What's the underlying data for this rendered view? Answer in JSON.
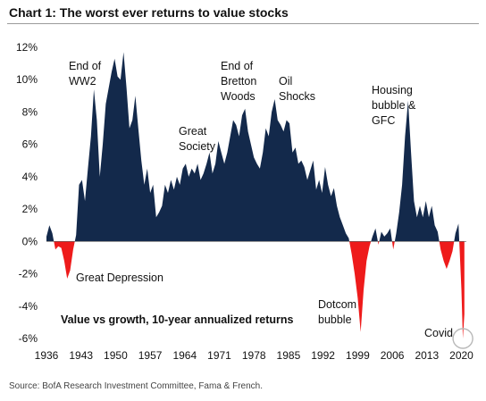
{
  "title": "Chart 1: The worst ever returns to value stocks",
  "source": "Source: BofA Research Investment Committee, Fama & French.",
  "colors": {
    "positive": "#13294b",
    "negative": "#ee1b1b",
    "circle": "#b8b8b8"
  },
  "chart_data": {
    "type": "area",
    "title": "Chart 1: The worst ever returns to value stocks",
    "subtitle": "Value vs growth, 10-year annualized returns",
    "xlabel": "",
    "ylabel": "",
    "xlim": [
      1936,
      2021
    ],
    "ylim": [
      -6,
      12
    ],
    "y_unit": "%",
    "grid": false,
    "legend": "none",
    "x_ticks": [
      1936,
      1943,
      1950,
      1957,
      1964,
      1971,
      1978,
      1985,
      1992,
      1999,
      2006,
      2013,
      2020
    ],
    "y_ticks": [
      -6,
      -4,
      -2,
      0,
      2,
      4,
      6,
      8,
      10,
      12
    ],
    "series": [
      {
        "x": [
          1936,
          1936.6,
          1937.2,
          1937.8,
          1938.4,
          1939.0,
          1939.6,
          1940.2,
          1940.8,
          1941.4,
          1942.0,
          1942.6,
          1943.2,
          1943.8,
          1944.4,
          1945.0,
          1945.6,
          1946.2,
          1946.8,
          1947.4,
          1948.0,
          1948.6,
          1949.2,
          1949.8,
          1950.4,
          1951.0,
          1951.6,
          1952.2,
          1952.8,
          1953.4,
          1954.0,
          1954.6,
          1955.2,
          1955.8,
          1956.4,
          1957.0,
          1957.6,
          1958.2,
          1958.8,
          1959.4,
          1960.0,
          1960.6,
          1961.2,
          1961.8,
          1962.4,
          1963.0,
          1963.6,
          1964.2,
          1964.8,
          1965.4,
          1966.0,
          1966.6,
          1967.2,
          1967.8,
          1968.4,
          1969.0,
          1969.6,
          1970.2,
          1970.8,
          1971.4,
          1972.0,
          1972.6,
          1973.2,
          1973.8,
          1974.4,
          1975.0,
          1975.6,
          1976.2,
          1976.8,
          1977.4,
          1978.0,
          1978.6,
          1979.2,
          1979.8,
          1980.4,
          1981.0,
          1981.6,
          1982.2,
          1982.8,
          1983.4,
          1984.0,
          1984.6,
          1985.2,
          1985.8,
          1986.4,
          1987.0,
          1987.6,
          1988.2,
          1988.8,
          1989.4,
          1990.0,
          1990.6,
          1991.2,
          1991.8,
          1992.4,
          1993.0,
          1993.6,
          1994.2,
          1994.8,
          1995.4,
          1996.0,
          1996.6,
          1997.2,
          1997.8,
          1998.4,
          1999.0,
          1999.6,
          2000.2,
          2000.8,
          2001.4,
          2002.0,
          2002.6,
          2003.2,
          2003.8,
          2004.4,
          2005.0,
          2005.6,
          2006.2,
          2006.8,
          2007.4,
          2008.0,
          2008.6,
          2009.2,
          2009.8,
          2010.4,
          2011.0,
          2011.6,
          2012.2,
          2012.8,
          2013.4,
          2014.0,
          2014.6,
          2015.2,
          2015.8,
          2016.4,
          2017.0,
          2017.6,
          2018.2,
          2018.8,
          2019.4,
          2020.0,
          2020.3,
          2020.6
        ],
        "values": [
          0.3,
          1.0,
          0.5,
          -0.5,
          -0.3,
          -0.4,
          -1.2,
          -2.3,
          -1.8,
          -0.5,
          0.4,
          3.5,
          3.8,
          2.5,
          4.5,
          6.5,
          9.4,
          7.5,
          4.0,
          6.0,
          8.5,
          9.5,
          10.5,
          11.3,
          10.2,
          10.0,
          11.7,
          9.5,
          7.0,
          7.5,
          9.0,
          7.0,
          5.0,
          3.5,
          4.5,
          3.0,
          3.5,
          1.5,
          1.8,
          2.2,
          3.5,
          3.0,
          3.8,
          3.2,
          4.0,
          3.5,
          4.5,
          4.8,
          4.0,
          4.5,
          4.2,
          4.8,
          3.8,
          4.2,
          4.8,
          5.5,
          4.2,
          4.8,
          6.2,
          5.5,
          4.8,
          5.5,
          6.5,
          7.5,
          7.2,
          6.5,
          7.8,
          8.2,
          6.8,
          6.0,
          5.2,
          4.8,
          4.5,
          5.5,
          7.0,
          6.5,
          8.0,
          8.8,
          7.5,
          7.2,
          6.8,
          7.5,
          7.3,
          5.5,
          5.8,
          4.8,
          5.0,
          4.6,
          3.8,
          4.4,
          5.0,
          3.2,
          3.8,
          3.0,
          4.6,
          3.5,
          2.8,
          3.3,
          2.2,
          1.5,
          1.0,
          0.5,
          0.2,
          -0.8,
          -2.0,
          -3.5,
          -5.6,
          -3.0,
          -1.2,
          -0.3,
          0.3,
          0.8,
          -0.2,
          0.6,
          0.3,
          0.5,
          0.8,
          -0.5,
          0.5,
          1.8,
          3.5,
          6.5,
          8.7,
          5.5,
          2.5,
          1.5,
          2.2,
          1.5,
          2.5,
          1.5,
          2.2,
          1.0,
          0.6,
          -0.5,
          -1.2,
          -1.7,
          -1.2,
          -0.6,
          0.5,
          1.1,
          -3.0,
          -6.0,
          -4.5
        ]
      }
    ],
    "annotations": [
      {
        "lines": [
          "End of",
          "WW2"
        ]
      },
      {
        "lines": [
          "Great",
          "Society"
        ]
      },
      {
        "lines": [
          "End of",
          "Bretton",
          "Woods"
        ]
      },
      {
        "lines": [
          "Oil",
          "Shocks"
        ]
      },
      {
        "lines": [
          "Housing",
          "bubble &",
          "GFC"
        ]
      },
      {
        "lines": [
          "Great Depression"
        ]
      },
      {
        "lines": [
          "Dotcom",
          "bubble"
        ]
      },
      {
        "lines": [
          "Covid"
        ]
      }
    ]
  }
}
